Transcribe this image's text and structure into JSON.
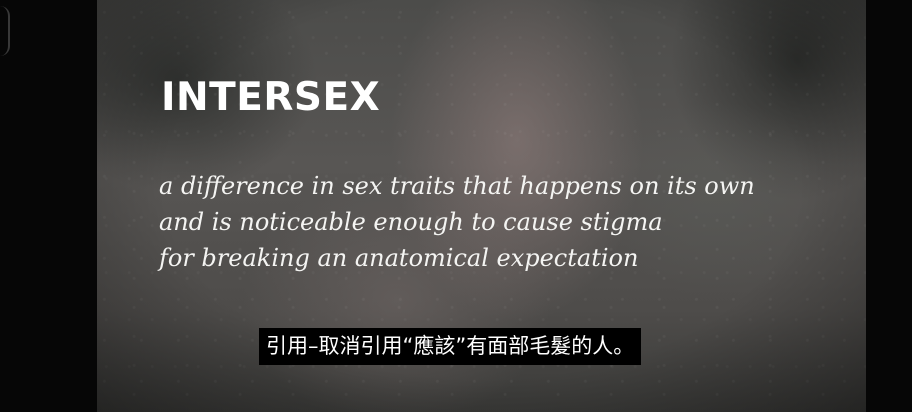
{
  "video": {
    "title": "INTERSEX",
    "definition_lines": [
      "a difference in sex traits that happens on its own",
      "and is noticeable enough to cause stigma",
      "for breaking an anatomical expectation"
    ],
    "subtitle": "引用–取消引用“應該”有面部毛髮的人。"
  }
}
